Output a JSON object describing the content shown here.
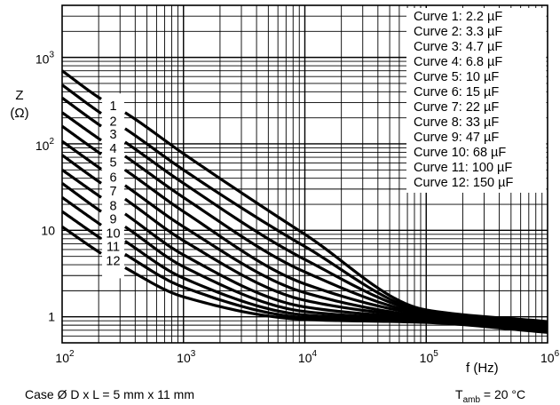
{
  "chart_data": {
    "type": "line",
    "x_scale": "log",
    "y_scale": "log",
    "xlim": [
      100,
      1000000
    ],
    "ylim": [
      0.5,
      4000
    ],
    "grid": true,
    "ylabel": "Z",
    "ylabel_unit": "(Ω)",
    "xlabel": "f (Hz)",
    "x_ticks": [
      {
        "value": 100,
        "base": "10",
        "exp": "2"
      },
      {
        "value": 1000,
        "base": "10",
        "exp": "3"
      },
      {
        "value": 10000,
        "base": "10",
        "exp": "4"
      },
      {
        "value": 100000,
        "base": "10",
        "exp": "5"
      },
      {
        "value": 1000000,
        "base": "10",
        "exp": "6"
      }
    ],
    "y_ticks": [
      {
        "value": 1,
        "label": "1",
        "base": "",
        "exp": ""
      },
      {
        "value": 10,
        "label": "10",
        "base": "",
        "exp": ""
      },
      {
        "value": 100,
        "label": "",
        "base": "10",
        "exp": "2"
      },
      {
        "value": 1000,
        "label": "",
        "base": "10",
        "exp": "3"
      }
    ],
    "legend_position": "top-right",
    "series": [
      {
        "name": "Curve 1: 2.2 µF",
        "label": "1",
        "capacitance_uF": 2.2,
        "x": [
          100,
          210,
          330,
          1000,
          10000,
          100000,
          1000000
        ],
        "y": [
          700,
          330,
          230,
          77,
          9,
          1.2,
          0.88
        ]
      },
      {
        "name": "Curve 2: 3.3 µF",
        "label": "2",
        "capacitance_uF": 3.3,
        "x": [
          100,
          210,
          330,
          1000,
          10000,
          100000,
          1000000
        ],
        "y": [
          480,
          225,
          150,
          50,
          6.5,
          1.15,
          0.85
        ]
      },
      {
        "name": "Curve 3: 4.7 µF",
        "label": "3",
        "capacitance_uF": 4.7,
        "x": [
          100,
          210,
          330,
          1000,
          10000,
          100000,
          1000000
        ],
        "y": [
          340,
          160,
          105,
          35,
          4.6,
          1.12,
          0.82
        ]
      },
      {
        "name": "Curve 4: 6.8 µF",
        "label": "4",
        "capacitance_uF": 6.8,
        "x": [
          100,
          210,
          330,
          1000,
          10000,
          100000,
          1000000
        ],
        "y": [
          230,
          110,
          72,
          24,
          3.3,
          1.08,
          0.8
        ]
      },
      {
        "name": "Curve 5: 10 µF",
        "label": "5",
        "capacitance_uF": 10,
        "x": [
          100,
          210,
          330,
          1000,
          10000,
          100000,
          1000000
        ],
        "y": [
          160,
          76,
          50,
          16.5,
          2.4,
          1.05,
          0.78
        ]
      },
      {
        "name": "Curve 6: 15 µF",
        "label": "6",
        "capacitance_uF": 15,
        "x": [
          100,
          210,
          330,
          1000,
          10000,
          100000,
          1000000
        ],
        "y": [
          107,
          51,
          33,
          11,
          1.9,
          1.0,
          0.76
        ]
      },
      {
        "name": "Curve 7: 22 µF",
        "label": "7",
        "capacitance_uF": 22,
        "x": [
          100,
          210,
          330,
          1000,
          10000,
          100000,
          1000000
        ],
        "y": [
          74,
          35,
          23,
          7.6,
          1.55,
          0.98,
          0.74
        ]
      },
      {
        "name": "Curve 8: 33 µF",
        "label": "8",
        "capacitance_uF": 33,
        "x": [
          100,
          210,
          330,
          1000,
          10000,
          100000,
          1000000
        ],
        "y": [
          50,
          24,
          15.5,
          5.2,
          1.3,
          0.95,
          0.72
        ]
      },
      {
        "name": "Curve 9: 47 µF",
        "label": "9",
        "capacitance_uF": 47,
        "x": [
          100,
          210,
          330,
          1000,
          10000,
          100000,
          1000000
        ],
        "y": [
          35,
          16.5,
          11,
          3.8,
          1.15,
          0.92,
          0.7
        ]
      },
      {
        "name": "Curve 10: 68 µF",
        "label": "10",
        "capacitance_uF": 68,
        "x": [
          100,
          210,
          330,
          1000,
          10000,
          100000,
          1000000
        ],
        "y": [
          24,
          11.5,
          7.5,
          2.8,
          1.05,
          0.9,
          0.69
        ]
      },
      {
        "name": "Curve 11: 100 µF",
        "label": "11",
        "capacitance_uF": 100,
        "x": [
          100,
          210,
          330,
          1000,
          10000,
          100000,
          1000000
        ],
        "y": [
          16.5,
          8,
          5.3,
          2.2,
          0.98,
          0.88,
          0.67
        ]
      },
      {
        "name": "Curve 12: 150 µF",
        "label": "12",
        "capacitance_uF": 150,
        "x": [
          100,
          210,
          330,
          1000,
          10000,
          100000,
          1000000
        ],
        "y": [
          11,
          5.4,
          3.7,
          1.7,
          0.93,
          0.86,
          0.66
        ]
      }
    ]
  },
  "footer": {
    "case_text": "Case Ø D x L = 5 mm x 11 mm",
    "tamb_main": "T",
    "tamb_sub": "amb",
    "tamb_rest": " = 20 °C"
  }
}
